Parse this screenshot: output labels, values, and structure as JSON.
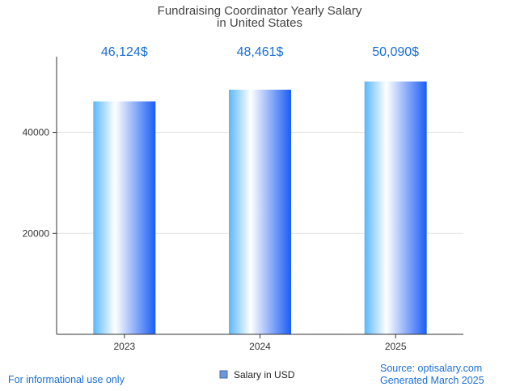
{
  "chart_data": {
    "type": "bar",
    "title_lines": [
      "Fundraising Coordinator Yearly Salary",
      "in United States"
    ],
    "categories": [
      "2023",
      "2024",
      "2025"
    ],
    "series": [
      {
        "name": "Salary in USD",
        "values": [
          46124,
          48461,
          50090
        ]
      }
    ],
    "value_labels": [
      "46,124$",
      "48,461$",
      "50,090$"
    ],
    "y_ticks": [
      20000,
      40000
    ],
    "ylim": [
      0,
      55000
    ],
    "grid": true,
    "legend_position": "bottom",
    "bar_gradient": [
      "#5ab8f8",
      "#ffffff",
      "#1a5df5"
    ]
  },
  "footer": {
    "left": "For informational use only",
    "source": "Source: optisalary.com",
    "generated": "Generated March 2025"
  }
}
